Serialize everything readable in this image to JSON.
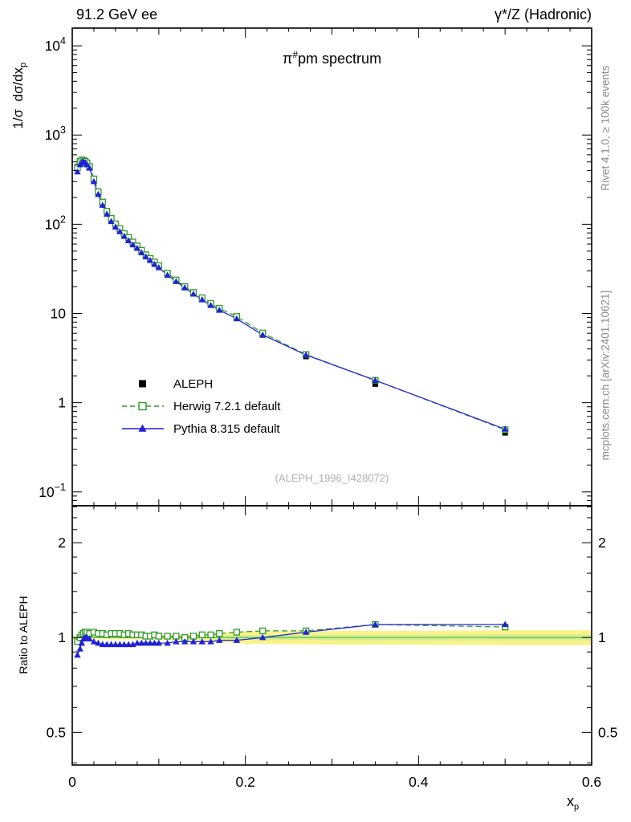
{
  "header": {
    "left": "91.2 GeV ee",
    "right": "γ*/Z (Hadronic)"
  },
  "plot_title": {
    "pre": "π",
    "sup": "#",
    "post": "pm spectrum"
  },
  "watermark": "(ALEPH_1996_I428072)",
  "side_notes": {
    "rivet": "Rivet 4.1.0, ≥ 100k events",
    "mcplots": "mcplots.cern.ch [arXiv:2401.10621]"
  },
  "axis_labels": {
    "y_main": "1/σ  dσ/dx",
    "y_main_sub": "p",
    "ratio": "Ratio to ALEPH",
    "x": "x",
    "x_sub": "p"
  },
  "legend": [
    {
      "label": "ALEPH",
      "marker": "filled-square",
      "color": "#000000",
      "line": "none"
    },
    {
      "label": "Herwig 7.2.1 default",
      "marker": "open-square",
      "color": "#2e9928",
      "line": "dashed"
    },
    {
      "label": "Pythia 8.315 default",
      "marker": "filled-triangle",
      "color": "#2121d8",
      "line": "solid"
    }
  ],
  "colors": {
    "aleph": "#000000",
    "herwig": "#2e9928",
    "pythia": "#2121d8",
    "band_outer": "#fbf28a",
    "band_inner": "#d3ef91",
    "band_center": "#55b546",
    "note_gray": "#8a8a8a",
    "watermark_gray": "#b0b0b0"
  },
  "chart_data": {
    "type": "line",
    "title": "π#pm spectrum",
    "xlabel": "x_p",
    "xlim": [
      0,
      0.6
    ],
    "x_ticks": [
      0,
      0.2,
      0.4,
      0.6
    ],
    "panels": {
      "main": {
        "ylabel": "1/σ dσ/dx_p",
        "yscale": "log",
        "ylim": [
          0.07,
          15800
        ]
      },
      "ratio": {
        "ylabel": "Ratio to ALEPH",
        "yscale": "log",
        "ylim": [
          0.394,
          2.62
        ],
        "major_ticks": [
          0.5,
          1,
          2
        ],
        "minor_ticks": [
          0.4,
          0.6,
          0.7,
          0.8,
          0.9,
          1.2,
          1.4,
          1.6,
          1.8,
          2.2,
          2.4,
          2.6
        ]
      }
    },
    "x": [
      0.006,
      0.009,
      0.011,
      0.013,
      0.015,
      0.017,
      0.02,
      0.025,
      0.03,
      0.035,
      0.04,
      0.045,
      0.05,
      0.055,
      0.06,
      0.065,
      0.07,
      0.075,
      0.08,
      0.085,
      0.09,
      0.095,
      0.1,
      0.11,
      0.12,
      0.13,
      0.14,
      0.15,
      0.16,
      0.17,
      0.19,
      0.22,
      0.27,
      0.35,
      0.5
    ],
    "series": [
      {
        "name": "ALEPH",
        "role": "reference-data",
        "values": [
          440,
          505,
          515,
          505,
          488,
          468,
          430,
          310,
          225,
          172,
          137,
          113,
          98,
          87,
          77,
          69,
          62,
          56,
          50,
          45,
          41,
          37,
          34,
          28,
          23.5,
          20,
          17,
          14.7,
          12.7,
          11.1,
          8.9,
          5.75,
          3.3,
          1.62,
          0.46
        ]
      },
      {
        "name": "Herwig 7.2.1 default",
        "role": "mc-model",
        "ratio_to_data": [
          0.97,
          1.0,
          1.02,
          1.03,
          1.04,
          1.04,
          1.03,
          1.04,
          1.03,
          1.03,
          1.02,
          1.03,
          1.03,
          1.03,
          1.02,
          1.03,
          1.02,
          1.02,
          1.02,
          1.01,
          1.01,
          1.02,
          1.01,
          1.01,
          1.01,
          1.0,
          1.01,
          1.02,
          1.02,
          1.03,
          1.04,
          1.05,
          1.05,
          1.1,
          1.08
        ]
      },
      {
        "name": "Pythia 8.315 default",
        "role": "mc-model",
        "ratio_to_data": [
          0.88,
          0.92,
          0.96,
          0.99,
          1.0,
          1.0,
          0.99,
          0.97,
          0.96,
          0.95,
          0.95,
          0.95,
          0.95,
          0.95,
          0.95,
          0.95,
          0.95,
          0.96,
          0.96,
          0.96,
          0.96,
          0.96,
          0.96,
          0.96,
          0.97,
          0.97,
          0.97,
          0.97,
          0.97,
          0.98,
          0.98,
          1.0,
          1.04,
          1.1,
          1.1
        ]
      }
    ],
    "uncertainty_band": {
      "x": [
        0,
        0.05,
        0.1,
        0.15,
        0.2,
        0.3,
        0.4,
        0.5,
        0.6
      ],
      "outer": [
        0.01,
        0.012,
        0.015,
        0.025,
        0.045,
        0.05,
        0.05,
        0.055,
        0.055
      ],
      "inner_frac": 0.4
    }
  }
}
